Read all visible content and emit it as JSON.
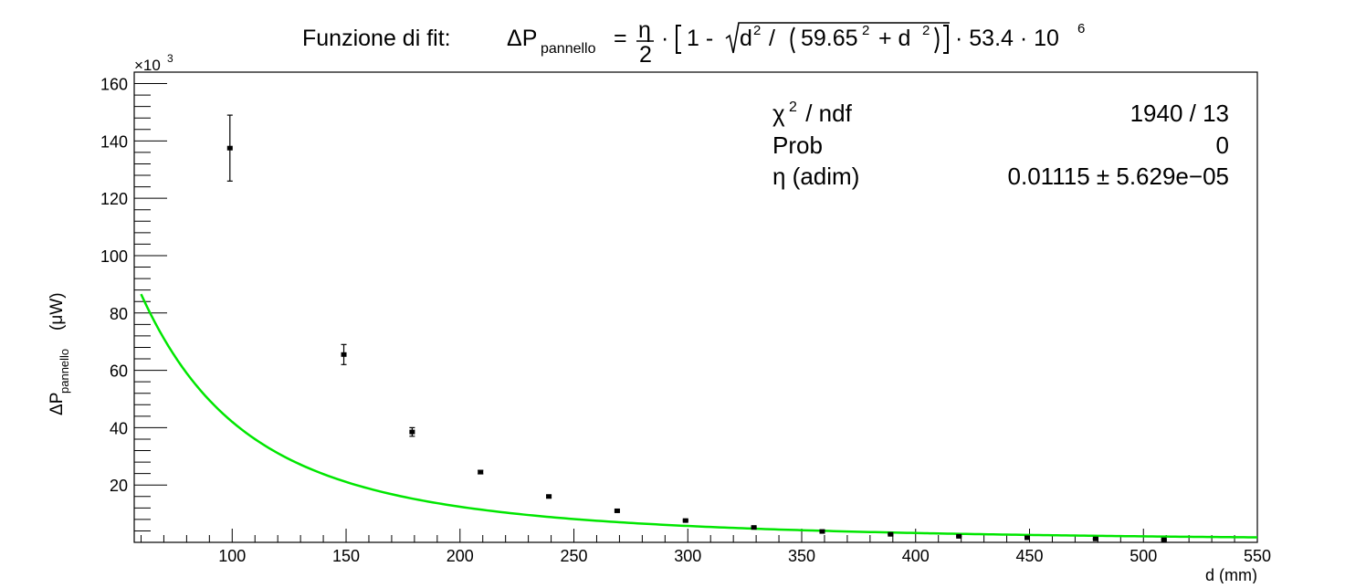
{
  "chart_data": {
    "type": "scatter",
    "title": {
      "prefix": "Funzione di fit:",
      "lhs": "ΔP",
      "lhs_sub": "pannello",
      "frac_num": "η",
      "frac_den": "2",
      "dot": "·",
      "p1": "1 -",
      "p2": "d",
      "p3": "/",
      "p4": "59.65",
      "p5": "+ d",
      "p6": "· 53.4 · 10",
      "sq": "2",
      "exp6": "6"
    },
    "xlabel": "d (mm)",
    "ylabel": {
      "main": "ΔP",
      "sub": "pannello",
      "unit": "(μW)"
    },
    "y_multiplier": {
      "base": "×10",
      "exp": "3"
    },
    "xlim": [
      57,
      550
    ],
    "ylim": [
      0,
      164000
    ],
    "x_ticks": [
      100,
      150,
      200,
      250,
      300,
      350,
      400,
      450,
      500,
      550
    ],
    "y_ticks": [
      20,
      40,
      60,
      80,
      100,
      120,
      140,
      160
    ],
    "grid": false,
    "series": [
      {
        "role": "data",
        "color": "#000000",
        "points": [
          {
            "x": 99,
            "y": 137500,
            "err": 11500
          },
          {
            "x": 149,
            "y": 65500,
            "err": 3500
          },
          {
            "x": 179,
            "y": 38500,
            "err": 1500
          },
          {
            "x": 209,
            "y": 24500,
            "err": 600
          },
          {
            "x": 239,
            "y": 16000,
            "err": 400
          },
          {
            "x": 269,
            "y": 11000,
            "err": 300
          },
          {
            "x": 299,
            "y": 7600,
            "err": 250
          },
          {
            "x": 329,
            "y": 5200,
            "err": 200
          },
          {
            "x": 359,
            "y": 3800,
            "err": 150
          },
          {
            "x": 389,
            "y": 2800,
            "err": 120
          },
          {
            "x": 419,
            "y": 2100,
            "err": 100
          },
          {
            "x": 449,
            "y": 1600,
            "err": 80
          },
          {
            "x": 479,
            "y": 1200,
            "err": 60
          },
          {
            "x": 509,
            "y": 900,
            "err": 50
          }
        ]
      },
      {
        "role": "fit",
        "color": "#00e600",
        "function": "eta/2*(1-sqrt(d^2/(59.65^2+d^2)))*53.4e6",
        "eta": 0.01115,
        "a": 59.65,
        "scale": 53400000,
        "domain": [
          60,
          550
        ]
      }
    ],
    "stats_box": {
      "rows": [
        {
          "label": "χ",
          "label_sup": "2",
          "label_rest": " / ndf",
          "value": "1940 / 13"
        },
        {
          "label": "Prob",
          "label_sup": "",
          "label_rest": "",
          "value": "0"
        },
        {
          "label": "η (adim)",
          "label_sup": "",
          "label_rest": "",
          "value": "0.01115 ± 5.629e−05"
        }
      ]
    }
  }
}
